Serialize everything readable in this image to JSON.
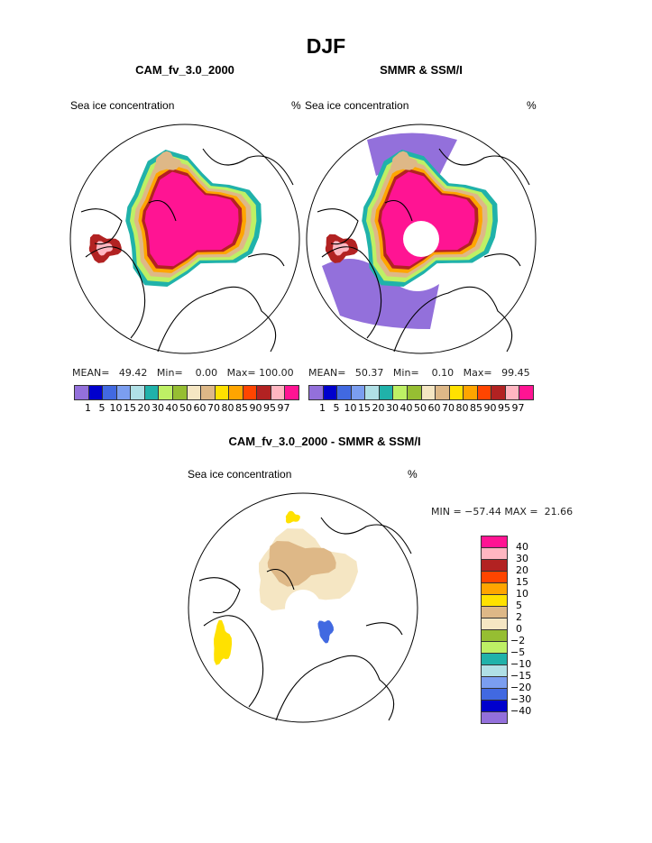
{
  "title": "DJF",
  "colors": [
    "#9370DB",
    "#0000CD",
    "#4169E1",
    "#7B9EF0",
    "#B0E0E6",
    "#20B2AA",
    "#BEF065",
    "#96BE32",
    "#F5E6C3",
    "#DEB887",
    "#FFE100",
    "#FFA500",
    "#FF4500",
    "#B22222",
    "#FFB6C1",
    "#FF1493"
  ],
  "panels": [
    {
      "subtitle": "CAM_fv_3.0_2000",
      "left_string": "Sea ice concentration",
      "right_string": "%",
      "mean_label": "MEAN=",
      "mean": "49.42",
      "min_label": "Min=",
      "min": "0.00",
      "max_label": "Max=",
      "max": "100.00"
    },
    {
      "subtitle": "SMMR & SSM/I",
      "left_string": "Sea ice concentration",
      "right_string": "%",
      "mean_label": "MEAN=",
      "mean": "50.37",
      "min_label": "Min=",
      "min": "0.10",
      "max_label": "Max=",
      "max": "99.45"
    }
  ],
  "levels": [
    "1",
    "5",
    "10",
    "15",
    "20",
    "30",
    "40",
    "50",
    "60",
    "70",
    "80",
    "85",
    "90",
    "95",
    "97"
  ],
  "diff": {
    "subtitle": "CAM_fv_3.0_2000 - SMMR & SSM/I",
    "left_string": "Sea ice concentration",
    "right_string": "%",
    "minmax": "MIN = −57.44 MAX =  21.66",
    "levels": [
      "40",
      "30",
      "20",
      "15",
      "10",
      "5",
      "2",
      "0",
      "−2",
      "−5",
      "−10",
      "−15",
      "−20",
      "−30",
      "−40"
    ]
  }
}
